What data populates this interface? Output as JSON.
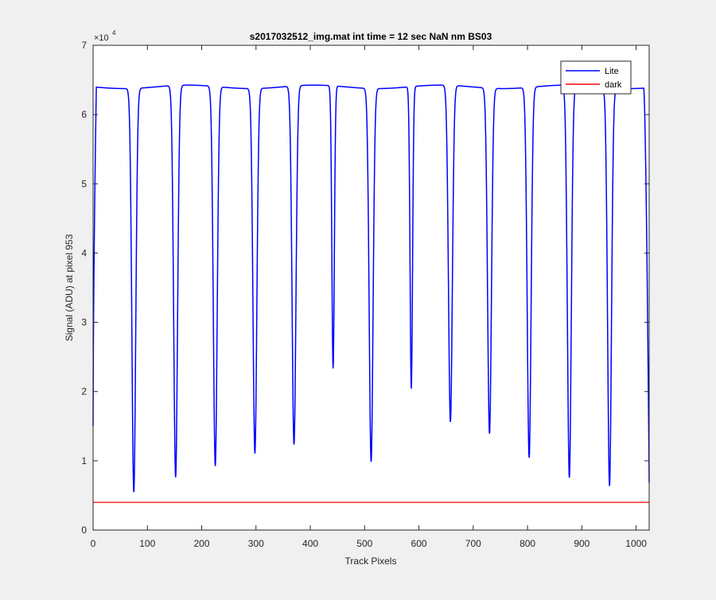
{
  "chart_data": {
    "type": "line",
    "title": "s2017032512_img.mat int time = 12 sec  NaN nm BS03",
    "xlabel": "Track Pixels",
    "ylabel": "Signal (ADU) at pixel 953",
    "xlim": [
      0,
      1024
    ],
    "ylim": [
      0,
      70000
    ],
    "x_ticks": [
      0,
      100,
      200,
      300,
      400,
      500,
      600,
      700,
      800,
      900,
      1000
    ],
    "y_ticks": [
      0,
      10000,
      20000,
      30000,
      40000,
      50000,
      60000,
      70000
    ],
    "y_tick_labels": [
      "0",
      "1",
      "2",
      "3",
      "4",
      "5",
      "6",
      "7"
    ],
    "y_exponent_label": "×10",
    "y_exponent_power": "4",
    "grid": false,
    "legend_position": "top-right",
    "series": [
      {
        "name": "Lite",
        "color": "#0000ff",
        "baseline": 64000,
        "start_value": 15000,
        "end_value": 7000,
        "dips": [
          {
            "x": 75,
            "min": 5700
          },
          {
            "x": 152,
            "min": 7400
          },
          {
            "x": 225,
            "min": 9200
          },
          {
            "x": 298,
            "min": 11300
          },
          {
            "x": 370,
            "min": 12200
          },
          {
            "x": 442,
            "min": 23200
          },
          {
            "x": 512,
            "min": 10100
          },
          {
            "x": 586,
            "min": 20400
          },
          {
            "x": 658,
            "min": 15400
          },
          {
            "x": 730,
            "min": 14100
          },
          {
            "x": 803,
            "min": 10500
          },
          {
            "x": 877,
            "min": 7300
          },
          {
            "x": 951,
            "min": 6500
          }
        ]
      },
      {
        "name": "dark",
        "color": "#ff0000",
        "value": 4000
      }
    ]
  }
}
